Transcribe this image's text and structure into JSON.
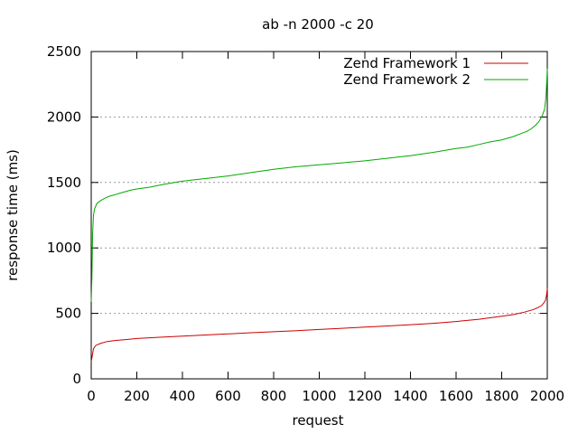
{
  "chart_data": {
    "type": "line",
    "title": "ab -n 2000 -c 20",
    "xlabel": "request",
    "ylabel": "response time (ms)",
    "xlim": [
      0,
      2000
    ],
    "ylim": [
      0,
      2500
    ],
    "xticks": [
      0,
      200,
      400,
      600,
      800,
      1000,
      1200,
      1400,
      1600,
      1800,
      2000
    ],
    "yticks": [
      0,
      500,
      1000,
      1500,
      2000,
      2500
    ],
    "grid": "horizontal dotted",
    "legend_position": "top-right",
    "series": [
      {
        "name": "Zend Framework 1",
        "color": "#cc0000",
        "x": [
          0,
          5,
          10,
          20,
          40,
          70,
          100,
          150,
          200,
          300,
          400,
          500,
          600,
          700,
          800,
          900,
          1000,
          1100,
          1200,
          1300,
          1400,
          1500,
          1600,
          1700,
          1800,
          1850,
          1900,
          1940,
          1960,
          1975,
          1985,
          1992,
          1997,
          2000
        ],
        "values": [
          130,
          180,
          230,
          255,
          270,
          285,
          292,
          300,
          308,
          318,
          327,
          335,
          343,
          352,
          360,
          368,
          377,
          386,
          395,
          404,
          414,
          424,
          438,
          455,
          478,
          490,
          510,
          530,
          545,
          560,
          580,
          600,
          640,
          690
        ]
      },
      {
        "name": "Zend Framework 2",
        "color": "#00aa00",
        "x": [
          0,
          3,
          6,
          10,
          15,
          25,
          40,
          60,
          80,
          100,
          130,
          170,
          200,
          260,
          300,
          350,
          400,
          450,
          500,
          600,
          700,
          800,
          900,
          1000,
          1100,
          1200,
          1300,
          1400,
          1500,
          1600,
          1650,
          1700,
          1750,
          1800,
          1850,
          1880,
          1910,
          1930,
          1950,
          1965,
          1978,
          1988,
          1994,
          1998,
          2000
        ],
        "values": [
          590,
          780,
          1100,
          1250,
          1300,
          1340,
          1360,
          1380,
          1395,
          1405,
          1420,
          1440,
          1450,
          1465,
          1480,
          1495,
          1510,
          1520,
          1530,
          1550,
          1575,
          1600,
          1620,
          1635,
          1650,
          1665,
          1685,
          1705,
          1730,
          1760,
          1770,
          1790,
          1810,
          1825,
          1850,
          1870,
          1890,
          1910,
          1940,
          1970,
          2010,
          2060,
          2150,
          2280,
          2370
        ]
      }
    ]
  }
}
